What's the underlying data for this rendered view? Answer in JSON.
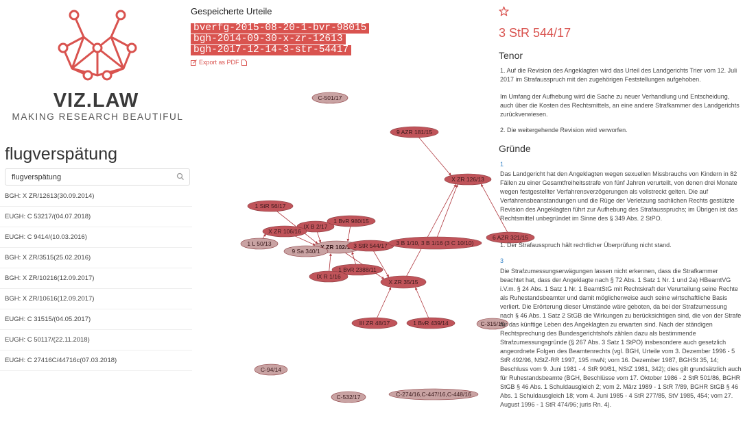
{
  "brand": {
    "name": "VIZ.LAW",
    "tagline": "MAKING RESEARCH BEAUTIFUL"
  },
  "search": {
    "title": "flugverspätung",
    "value": "flugverspätung"
  },
  "results": [
    "BGH: X ZR/12613(30.09.2014)",
    "EUGH: C 53217/(04.07.2018)",
    "EUGH: C 9414/(10.03.2016)",
    "BGH: X ZR/3515(25.02.2016)",
    "BGH: X ZR/10216(12.09.2017)",
    "BGH: X ZR/10616(12.09.2017)",
    "EUGH: C 31515/(04.05.2017)",
    "EUGH: C 50117/(22.11.2018)",
    "EUGH: C 27416C/44716c(07.03.2018)"
  ],
  "saved": {
    "title": "Gespeicherte Urteile",
    "items": [
      "bverfg-2015-08-20-1-bvr-98015",
      "bgh-2014-09-30-x-zr-12613",
      "bgh-2017-12-14-3-str-54417"
    ],
    "export_label": "Export as PDF"
  },
  "graph": {
    "nodes": [
      {
        "id": "C-501/17",
        "light": true
      },
      {
        "id": "9 AZR 181/15",
        "light": false
      },
      {
        "id": "X ZR 126/13",
        "light": false
      },
      {
        "id": "1 StR 56/17",
        "light": false
      },
      {
        "id": "IX B 2/17",
        "light": false
      },
      {
        "id": "1 BvR 980/15",
        "light": false
      },
      {
        "id": "X ZR 106/16",
        "light": false
      },
      {
        "id": "1 L 50/13",
        "light": true
      },
      {
        "id": "X ZR 102/16",
        "light": true,
        "bold": true
      },
      {
        "id": "3 StR 544/17",
        "light": false
      },
      {
        "id": "3 B 1/10, 3 B 1/16 (3 C 10/10)",
        "light": false
      },
      {
        "id": "6 AZR 321/15",
        "light": false
      },
      {
        "id": "9 Sa 340/1",
        "light": true
      },
      {
        "id": "1 BvR 2388/11",
        "light": false
      },
      {
        "id": "IX R 1/16",
        "light": false
      },
      {
        "id": "X ZR 35/15",
        "light": false
      },
      {
        "id": "III ZR 48/17",
        "light": false
      },
      {
        "id": "1 BvR 439/14",
        "light": false
      },
      {
        "id": "C-315/15",
        "light": true
      },
      {
        "id": "C-94/14",
        "light": true
      },
      {
        "id": "C-532/17",
        "light": true
      },
      {
        "id": "C-274/16,C-447/16,C-448/16",
        "light": true
      }
    ]
  },
  "detail": {
    "case": "3 StR 544/17",
    "tenor_heading": "Tenor",
    "tenor": [
      "1. Auf die Revision des Angeklagten wird das Urteil des Landgerichts Trier vom 12. Juli 2017 im Strafausspruch mit den zugehörigen Feststellungen aufgehoben.",
      "Im Umfang der Aufhebung wird die Sache zu neuer Verhandlung und Entscheidung, auch über die Kosten des Rechtsmittels, an eine andere Strafkammer des Landgerichts zurückverwiesen.",
      "2. Die weitergehende Revision wird verworfen."
    ],
    "gruende_heading": "Gründe",
    "gruende": [
      {
        "num": "1",
        "text": "Das Landgericht hat den Angeklagten wegen sexuellen Missbrauchs von Kindern in 82 Fällen zu einer Gesamtfreiheitsstrafe von fünf Jahren verurteilt, von denen drei Monate wegen festgestellter Verfahrensverzögerungen als vollstreckt gelten. Die auf Verfahrensbeanstandungen und die Rüge der Verletzung sachlichen Rechts gestützte Revision des Angeklagten führt zur Aufhebung des Strafausspruchs; im Übrigen ist das Rechtsmittel unbegründet im Sinne des § 349 Abs. 2 StPO."
      },
      {
        "num": "",
        "text": "1. Der Strafausspruch hält rechtlicher Überprüfung nicht stand."
      },
      {
        "num": "3",
        "text": "Die Strafzumessungserwägungen lassen nicht erkennen, dass die Strafkammer beachtet hat, dass der Angeklagte nach § 72 Abs. 1 Satz 1 Nr. 1 und 2a) HBeamtVG i.V.m. § 24 Abs. 1 Satz 1 Nr. 1 BeamtStG mit Rechtskraft der Verurteilung seine Rechte als Ruhestandsbeamter und damit möglicherweise auch seine wirtschaftliche Basis verliert. Die Erörterung dieser Umstände wäre geboten, da bei der Strafzumessung nach § 46 Abs. 1 Satz 2 StGB die Wirkungen zu berücksichtigen sind, die von der Strafe für das künftige Leben des Angeklagten zu erwarten sind. Nach der ständigen Rechtsprechung des Bundesgerichtshofs zählen dazu als bestimmende Strafzumessungsgründe (§ 267 Abs. 3 Satz 1 StPO) insbesondere auch gesetzlich angeordnete Folgen des Beamtenrechts (vgl. BGH, Urteile vom 3. Dezember 1996 - 5 StR 492/96, NStZ-RR 1997, 195 mwN; vom 16. Dezember 1987, BGHSt 35, 14; Beschluss vom 9. Juni 1981 - 4 StR 90/81, NStZ 1981, 342); dies gilt grundsätzlich auch für Ruhestandsbeamte (BGH, Beschlüsse vom 17. Oktober 1986 - 2 StR 501/86, BGHR StGB § 46 Abs. 1 Schuldausgleich 2; vom 2. März 1989 - 1 StR 7/89, BGHR StGB § 46 Abs. 1 Schuldausgleich 18; vom 4. Juni 1985 - 4 StR 277/85, StV 1985, 454; vom 27. August 1996 - 1 StR 474/96; juris Rn. 4)."
      }
    ]
  },
  "colors": {
    "accent": "#d9534f",
    "node": "#c0545a",
    "node_light": "#c9a3a3",
    "edge": "#b03a40"
  }
}
